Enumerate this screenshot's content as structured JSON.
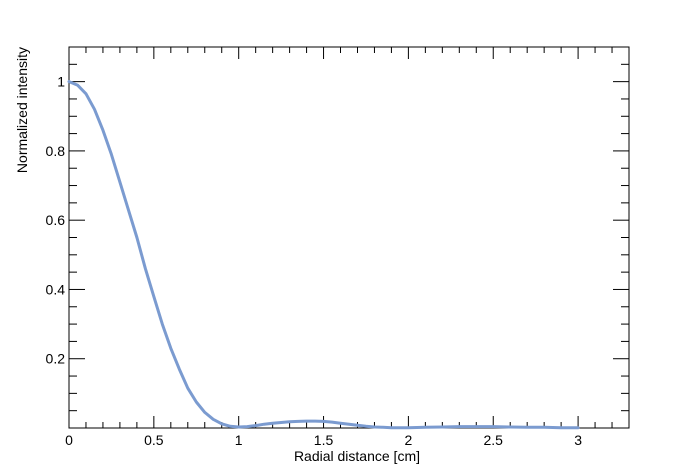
{
  "chart_data": {
    "type": "line",
    "title": "",
    "xlabel": "Radial distance [cm]",
    "ylabel": "Normalized intensity",
    "xlim": [
      0,
      3.3
    ],
    "ylim": [
      0,
      1.1
    ],
    "grid": false,
    "legend": "none",
    "x_ticks": [
      0,
      0.5,
      1,
      1.5,
      2,
      2.5,
      3
    ],
    "x_tick_labels": [
      "0",
      "0.5",
      "1",
      "1.5",
      "2",
      "2.5",
      "3"
    ],
    "y_ticks": [
      0.2,
      0.4,
      0.6,
      0.8,
      1
    ],
    "y_tick_labels": [
      "0.2",
      "0.4",
      "0.6",
      "0.8",
      "1"
    ],
    "series": [
      {
        "color": "#7b9bd0",
        "x": [
          0,
          0.05,
          0.1,
          0.15,
          0.2,
          0.25,
          0.3,
          0.35,
          0.4,
          0.45,
          0.5,
          0.55,
          0.6,
          0.65,
          0.7,
          0.75,
          0.8,
          0.85,
          0.9,
          0.95,
          1.0,
          1.05,
          1.1,
          1.15,
          1.2,
          1.25,
          1.3,
          1.35,
          1.4,
          1.45,
          1.5,
          1.55,
          1.6,
          1.65,
          1.7,
          1.75,
          1.8,
          1.85,
          1.9,
          1.95,
          2.0,
          2.1,
          2.2,
          2.3,
          2.4,
          2.5,
          2.6,
          2.7,
          2.8,
          2.9,
          3.0
        ],
        "y": [
          1.0,
          0.99,
          0.965,
          0.92,
          0.86,
          0.79,
          0.71,
          0.63,
          0.55,
          0.46,
          0.38,
          0.3,
          0.23,
          0.17,
          0.115,
          0.075,
          0.045,
          0.025,
          0.012,
          0.005,
          0.003,
          0.004,
          0.007,
          0.011,
          0.014,
          0.016,
          0.018,
          0.019,
          0.02,
          0.02,
          0.019,
          0.017,
          0.014,
          0.011,
          0.008,
          0.005,
          0.003,
          0.002,
          0.001,
          0.001,
          0.001,
          0.002,
          0.003,
          0.004,
          0.004,
          0.004,
          0.003,
          0.002,
          0.002,
          0.001,
          0.001
        ]
      }
    ]
  }
}
